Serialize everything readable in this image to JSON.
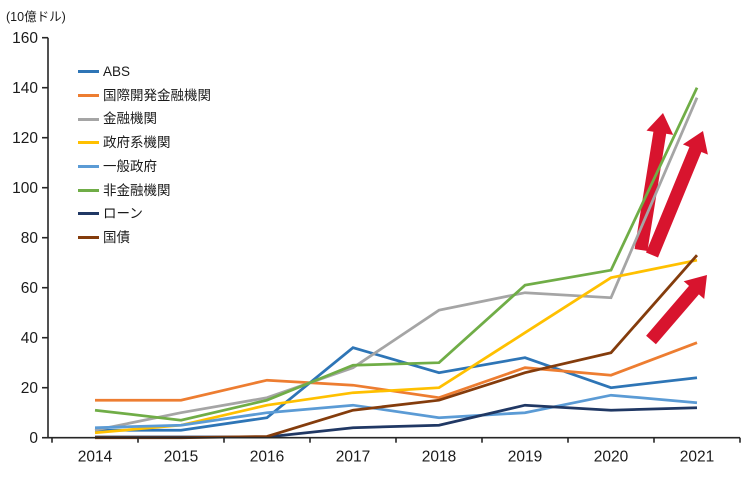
{
  "chart_data": {
    "type": "line",
    "title": "",
    "unit_label": "(10億ドル)",
    "xlabel": "",
    "ylabel": "10億ドル",
    "x": [
      "2014",
      "2015",
      "2016",
      "2017",
      "2018",
      "2019",
      "2020",
      "2021"
    ],
    "ylim": [
      0,
      160
    ],
    "ytick_step": 20,
    "grid": false,
    "legend_position": "upper-left-inside",
    "series": [
      {
        "name": "ABS",
        "color": "#2e75b6",
        "values": [
          3,
          3,
          8,
          36,
          26,
          32,
          20,
          24
        ]
      },
      {
        "name": "国際開発金融機関",
        "color": "#ed7d31",
        "values": [
          15,
          15,
          23,
          21,
          16,
          28,
          25,
          38
        ]
      },
      {
        "name": "金融機関",
        "color": "#a5a5a5",
        "values": [
          3,
          10,
          16,
          28,
          51,
          58,
          56,
          136
        ]
      },
      {
        "name": "政府系機関",
        "color": "#ffc000",
        "values": [
          2,
          5,
          13,
          18,
          20,
          42,
          64,
          71
        ]
      },
      {
        "name": "一般政府",
        "color": "#5b9bd5",
        "values": [
          4,
          5,
          10,
          13,
          8,
          10,
          17,
          14
        ]
      },
      {
        "name": "非金融機関",
        "color": "#70ad47",
        "values": [
          11,
          7,
          15,
          29,
          30,
          61,
          67,
          140
        ]
      },
      {
        "name": "ローン",
        "color": "#203864",
        "values": [
          0.3,
          0.3,
          0.3,
          4,
          5,
          13,
          11,
          12
        ]
      },
      {
        "name": "国債",
        "color": "#843c0c",
        "values": [
          0,
          0,
          0.5,
          11,
          15,
          26,
          34,
          73
        ]
      }
    ],
    "annotations": {
      "arrow_color": "#d8142e",
      "arrows": [
        {
          "name": "up-trend-arrow-left",
          "from": [
            641,
            250
          ],
          "to": [
            663,
            113
          ]
        },
        {
          "name": "up-trend-arrow-right",
          "from": [
            652,
            255
          ],
          "to": [
            703,
            131
          ]
        },
        {
          "name": "up-trend-arrow-lower",
          "from": [
            651,
            340
          ],
          "to": [
            707,
            275
          ]
        }
      ]
    }
  }
}
